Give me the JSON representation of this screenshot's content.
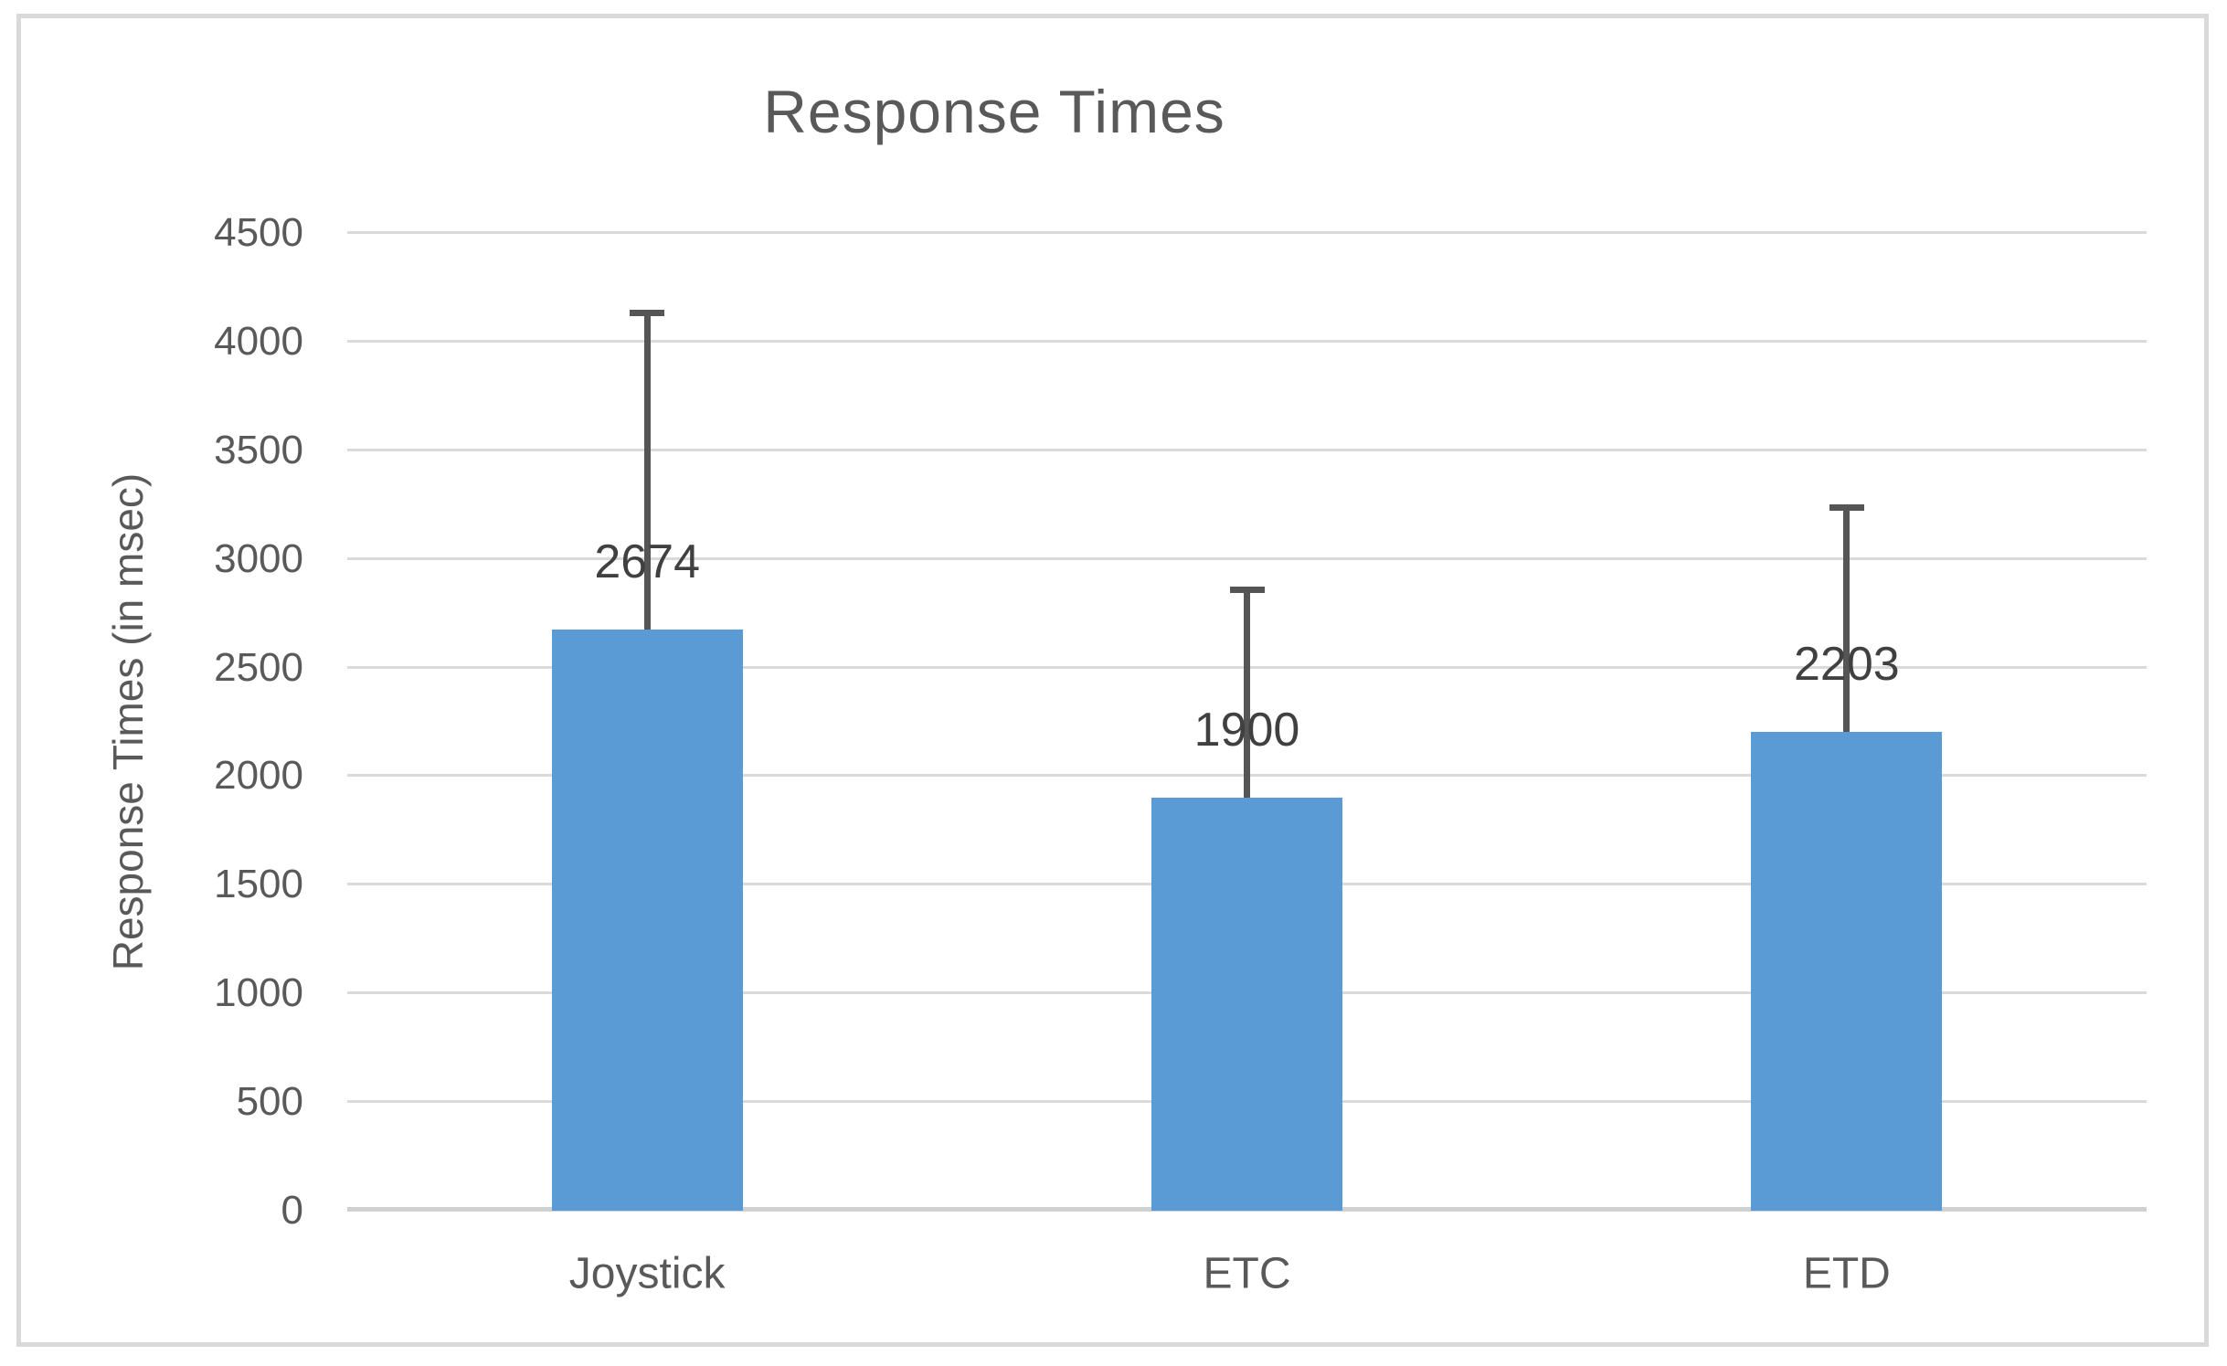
{
  "chart_data": {
    "type": "bar",
    "title": "Response Times",
    "ylabel": "Response Times (in msec)",
    "xlabel": "",
    "categories": [
      "Joystick",
      "ETC",
      "ETD"
    ],
    "values": [
      2674,
      1900,
      2203
    ],
    "data_labels": [
      "2674",
      "1900",
      "2203"
    ],
    "error_plus": [
      1474,
      973,
      1049
    ],
    "error_bar_top_values": [
      4148,
      2873,
      3252
    ],
    "error_bar_direction": "plus",
    "ylim": [
      0,
      4500
    ],
    "yticks": [
      0,
      500,
      1000,
      1500,
      2000,
      2500,
      3000,
      3500,
      4000,
      4500
    ],
    "grid": true,
    "legend": false,
    "legend_position": "none"
  },
  "colors": {
    "bar": "#5B9BD5",
    "gridline": "#DADADA",
    "axis_line": "#D0D0D0",
    "frame_border": "#D9D9D9",
    "title_text": "#595959",
    "tick_text": "#595959",
    "data_label_text": "#404040",
    "error_bar": "#555555",
    "background": "#FFFFFF"
  }
}
